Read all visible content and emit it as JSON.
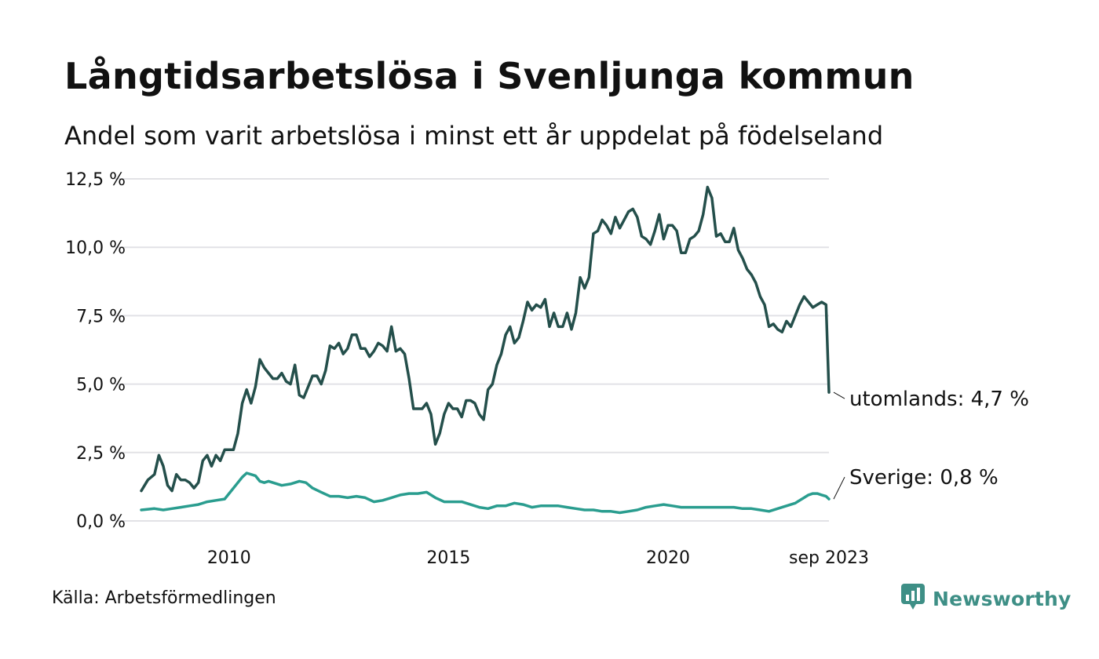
{
  "header": {
    "title": "Långtidsarbetslösa i Svenljunga kommun",
    "subtitle": "Andel som varit arbetslösa i minst ett år uppdelat på födelseland"
  },
  "footer": {
    "source": "Källa: Arbetsförmedlingen",
    "brand": "Newsworthy"
  },
  "colors": {
    "utomlands": "#244f4b",
    "sverige": "#2a9d8f",
    "grid": "#e2e2e6",
    "brand": "#3e8f86"
  },
  "chart_data": {
    "type": "line",
    "title": "Långtidsarbetslösa i Svenljunga kommun",
    "subtitle": "Andel som varit arbetslösa i minst ett år uppdelat på födelseland",
    "xlabel": "",
    "ylabel": "",
    "x_range": [
      2008.0,
      2023.667
    ],
    "ylim": [
      0,
      12.5
    ],
    "yticks": [
      0,
      2.5,
      5.0,
      7.5,
      10.0,
      12.5
    ],
    "ytick_labels": [
      "0,0 %",
      "2,5 %",
      "5,0 %",
      "7,5 %",
      "10,0 %",
      "12,5 %"
    ],
    "xticks": [
      2010,
      2015,
      2020,
      2023.667
    ],
    "xtick_labels": [
      "2010",
      "2015",
      "2020",
      "sep 2023"
    ],
    "grid": true,
    "series": [
      {
        "name": "utomlands",
        "end_label": "utomlands: 4,7 %",
        "points": [
          [
            2008.0,
            1.1
          ],
          [
            2008.15,
            1.5
          ],
          [
            2008.3,
            1.7
          ],
          [
            2008.4,
            2.4
          ],
          [
            2008.5,
            2.0
          ],
          [
            2008.6,
            1.3
          ],
          [
            2008.7,
            1.1
          ],
          [
            2008.8,
            1.7
          ],
          [
            2008.9,
            1.5
          ],
          [
            2009.0,
            1.5
          ],
          [
            2009.1,
            1.4
          ],
          [
            2009.2,
            1.2
          ],
          [
            2009.3,
            1.4
          ],
          [
            2009.4,
            2.2
          ],
          [
            2009.5,
            2.4
          ],
          [
            2009.6,
            2.0
          ],
          [
            2009.7,
            2.4
          ],
          [
            2009.8,
            2.2
          ],
          [
            2009.9,
            2.6
          ],
          [
            2010.0,
            2.6
          ],
          [
            2010.1,
            2.6
          ],
          [
            2010.2,
            3.2
          ],
          [
            2010.3,
            4.3
          ],
          [
            2010.4,
            4.8
          ],
          [
            2010.5,
            4.3
          ],
          [
            2010.6,
            4.9
          ],
          [
            2010.7,
            5.9
          ],
          [
            2010.8,
            5.6
          ],
          [
            2010.9,
            5.4
          ],
          [
            2011.0,
            5.2
          ],
          [
            2011.1,
            5.2
          ],
          [
            2011.2,
            5.4
          ],
          [
            2011.3,
            5.1
          ],
          [
            2011.4,
            5.0
          ],
          [
            2011.5,
            5.7
          ],
          [
            2011.6,
            4.6
          ],
          [
            2011.7,
            4.5
          ],
          [
            2011.8,
            4.9
          ],
          [
            2011.9,
            5.3
          ],
          [
            2012.0,
            5.3
          ],
          [
            2012.1,
            5.0
          ],
          [
            2012.2,
            5.5
          ],
          [
            2012.3,
            6.4
          ],
          [
            2012.4,
            6.3
          ],
          [
            2012.5,
            6.5
          ],
          [
            2012.6,
            6.1
          ],
          [
            2012.7,
            6.3
          ],
          [
            2012.8,
            6.8
          ],
          [
            2012.9,
            6.8
          ],
          [
            2013.0,
            6.3
          ],
          [
            2013.1,
            6.3
          ],
          [
            2013.2,
            6.0
          ],
          [
            2013.3,
            6.2
          ],
          [
            2013.4,
            6.5
          ],
          [
            2013.5,
            6.4
          ],
          [
            2013.6,
            6.2
          ],
          [
            2013.7,
            7.1
          ],
          [
            2013.8,
            6.2
          ],
          [
            2013.9,
            6.3
          ],
          [
            2014.0,
            6.1
          ],
          [
            2014.1,
            5.2
          ],
          [
            2014.2,
            4.1
          ],
          [
            2014.3,
            4.1
          ],
          [
            2014.4,
            4.1
          ],
          [
            2014.5,
            4.3
          ],
          [
            2014.6,
            3.9
          ],
          [
            2014.7,
            2.8
          ],
          [
            2014.8,
            3.2
          ],
          [
            2014.9,
            3.9
          ],
          [
            2015.0,
            4.3
          ],
          [
            2015.1,
            4.1
          ],
          [
            2015.2,
            4.1
          ],
          [
            2015.3,
            3.8
          ],
          [
            2015.4,
            4.4
          ],
          [
            2015.5,
            4.4
          ],
          [
            2015.6,
            4.3
          ],
          [
            2015.7,
            3.9
          ],
          [
            2015.8,
            3.7
          ],
          [
            2015.9,
            4.8
          ],
          [
            2016.0,
            5.0
          ],
          [
            2016.1,
            5.7
          ],
          [
            2016.2,
            6.1
          ],
          [
            2016.3,
            6.8
          ],
          [
            2016.4,
            7.1
          ],
          [
            2016.5,
            6.5
          ],
          [
            2016.6,
            6.7
          ],
          [
            2016.7,
            7.3
          ],
          [
            2016.8,
            8.0
          ],
          [
            2016.9,
            7.7
          ],
          [
            2017.0,
            7.9
          ],
          [
            2017.1,
            7.8
          ],
          [
            2017.2,
            8.1
          ],
          [
            2017.3,
            7.1
          ],
          [
            2017.4,
            7.6
          ],
          [
            2017.5,
            7.1
          ],
          [
            2017.6,
            7.1
          ],
          [
            2017.7,
            7.6
          ],
          [
            2017.8,
            7.0
          ],
          [
            2017.9,
            7.6
          ],
          [
            2018.0,
            8.9
          ],
          [
            2018.1,
            8.5
          ],
          [
            2018.2,
            8.9
          ],
          [
            2018.3,
            10.5
          ],
          [
            2018.4,
            10.6
          ],
          [
            2018.5,
            11.0
          ],
          [
            2018.6,
            10.8
          ],
          [
            2018.7,
            10.5
          ],
          [
            2018.8,
            11.1
          ],
          [
            2018.9,
            10.7
          ],
          [
            2019.0,
            11.0
          ],
          [
            2019.1,
            11.3
          ],
          [
            2019.2,
            11.4
          ],
          [
            2019.3,
            11.1
          ],
          [
            2019.4,
            10.4
          ],
          [
            2019.5,
            10.3
          ],
          [
            2019.6,
            10.1
          ],
          [
            2019.7,
            10.6
          ],
          [
            2019.8,
            11.2
          ],
          [
            2019.9,
            10.3
          ],
          [
            2020.0,
            10.8
          ],
          [
            2020.1,
            10.8
          ],
          [
            2020.2,
            10.6
          ],
          [
            2020.3,
            9.8
          ],
          [
            2020.4,
            9.8
          ],
          [
            2020.5,
            10.3
          ],
          [
            2020.6,
            10.4
          ],
          [
            2020.7,
            10.6
          ],
          [
            2020.8,
            11.2
          ],
          [
            2020.9,
            12.2
          ],
          [
            2021.0,
            11.8
          ],
          [
            2021.1,
            10.4
          ],
          [
            2021.2,
            10.5
          ],
          [
            2021.3,
            10.2
          ],
          [
            2021.4,
            10.2
          ],
          [
            2021.5,
            10.7
          ],
          [
            2021.6,
            9.9
          ],
          [
            2021.7,
            9.6
          ],
          [
            2021.8,
            9.2
          ],
          [
            2021.9,
            9.0
          ],
          [
            2022.0,
            8.7
          ],
          [
            2022.1,
            8.2
          ],
          [
            2022.2,
            7.9
          ],
          [
            2022.3,
            7.1
          ],
          [
            2022.4,
            7.2
          ],
          [
            2022.5,
            7.0
          ],
          [
            2022.6,
            6.9
          ],
          [
            2022.7,
            7.3
          ],
          [
            2022.8,
            7.1
          ],
          [
            2022.9,
            7.5
          ],
          [
            2023.0,
            7.9
          ],
          [
            2023.1,
            8.2
          ],
          [
            2023.2,
            8.0
          ],
          [
            2023.3,
            7.8
          ],
          [
            2023.4,
            7.9
          ],
          [
            2023.5,
            8.0
          ],
          [
            2023.6,
            7.9
          ],
          [
            2023.667,
            4.7
          ]
        ]
      },
      {
        "name": "Sverige",
        "end_label": "Sverige: 0,8 %",
        "points": [
          [
            2008.0,
            0.4
          ],
          [
            2008.3,
            0.45
          ],
          [
            2008.5,
            0.4
          ],
          [
            2008.7,
            0.45
          ],
          [
            2008.9,
            0.5
          ],
          [
            2009.1,
            0.55
          ],
          [
            2009.3,
            0.6
          ],
          [
            2009.5,
            0.7
          ],
          [
            2009.7,
            0.75
          ],
          [
            2009.9,
            0.8
          ],
          [
            2010.0,
            1.0
          ],
          [
            2010.15,
            1.3
          ],
          [
            2010.3,
            1.6
          ],
          [
            2010.4,
            1.75
          ],
          [
            2010.5,
            1.7
          ],
          [
            2010.6,
            1.65
          ],
          [
            2010.7,
            1.45
          ],
          [
            2010.8,
            1.4
          ],
          [
            2010.9,
            1.45
          ],
          [
            2011.0,
            1.4
          ],
          [
            2011.2,
            1.3
          ],
          [
            2011.4,
            1.35
          ],
          [
            2011.5,
            1.4
          ],
          [
            2011.6,
            1.45
          ],
          [
            2011.75,
            1.4
          ],
          [
            2011.9,
            1.2
          ],
          [
            2012.1,
            1.05
          ],
          [
            2012.3,
            0.9
          ],
          [
            2012.5,
            0.9
          ],
          [
            2012.7,
            0.85
          ],
          [
            2012.9,
            0.9
          ],
          [
            2013.1,
            0.85
          ],
          [
            2013.3,
            0.7
          ],
          [
            2013.5,
            0.75
          ],
          [
            2013.7,
            0.85
          ],
          [
            2013.9,
            0.95
          ],
          [
            2014.1,
            1.0
          ],
          [
            2014.3,
            1.0
          ],
          [
            2014.5,
            1.05
          ],
          [
            2014.7,
            0.85
          ],
          [
            2014.9,
            0.7
          ],
          [
            2015.1,
            0.7
          ],
          [
            2015.3,
            0.7
          ],
          [
            2015.5,
            0.6
          ],
          [
            2015.7,
            0.5
          ],
          [
            2015.9,
            0.45
          ],
          [
            2016.1,
            0.55
          ],
          [
            2016.3,
            0.55
          ],
          [
            2016.5,
            0.65
          ],
          [
            2016.7,
            0.6
          ],
          [
            2016.9,
            0.5
          ],
          [
            2017.1,
            0.55
          ],
          [
            2017.3,
            0.55
          ],
          [
            2017.5,
            0.55
          ],
          [
            2017.7,
            0.5
          ],
          [
            2017.9,
            0.45
          ],
          [
            2018.1,
            0.4
          ],
          [
            2018.3,
            0.4
          ],
          [
            2018.5,
            0.35
          ],
          [
            2018.7,
            0.35
          ],
          [
            2018.9,
            0.3
          ],
          [
            2019.1,
            0.35
          ],
          [
            2019.3,
            0.4
          ],
          [
            2019.5,
            0.5
          ],
          [
            2019.7,
            0.55
          ],
          [
            2019.9,
            0.6
          ],
          [
            2020.1,
            0.55
          ],
          [
            2020.3,
            0.5
          ],
          [
            2020.5,
            0.5
          ],
          [
            2020.7,
            0.5
          ],
          [
            2020.9,
            0.5
          ],
          [
            2021.1,
            0.5
          ],
          [
            2021.3,
            0.5
          ],
          [
            2021.5,
            0.5
          ],
          [
            2021.7,
            0.45
          ],
          [
            2021.9,
            0.45
          ],
          [
            2022.1,
            0.4
          ],
          [
            2022.3,
            0.35
          ],
          [
            2022.5,
            0.45
          ],
          [
            2022.7,
            0.55
          ],
          [
            2022.9,
            0.65
          ],
          [
            2023.0,
            0.75
          ],
          [
            2023.1,
            0.85
          ],
          [
            2023.2,
            0.95
          ],
          [
            2023.3,
            1.0
          ],
          [
            2023.4,
            1.0
          ],
          [
            2023.5,
            0.95
          ],
          [
            2023.6,
            0.9
          ],
          [
            2023.667,
            0.8
          ]
        ]
      }
    ]
  }
}
